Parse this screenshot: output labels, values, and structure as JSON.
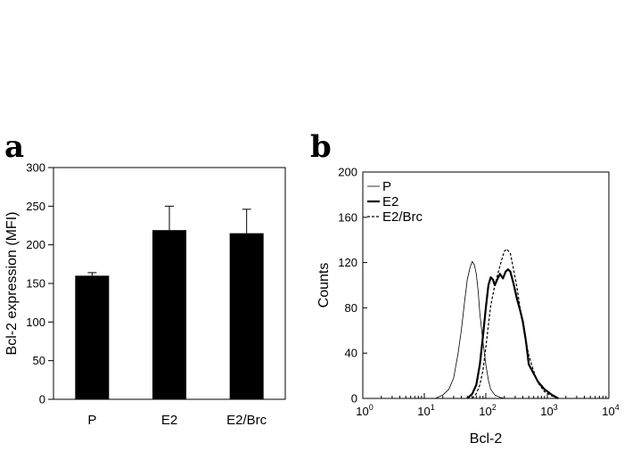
{
  "panels": [
    {
      "letter": "a"
    },
    {
      "letter": "b"
    }
  ],
  "chart_data": [
    {
      "type": "bar",
      "ylabel": "Bcl-2 expression (MFI)",
      "xlabel": "",
      "categories": [
        "P",
        "E2",
        "E2/Brc"
      ],
      "values": [
        160,
        219,
        215
      ],
      "error_plus": [
        4,
        31,
        31
      ],
      "ylim": [
        0,
        300
      ],
      "yticks": [
        0,
        50,
        100,
        150,
        200,
        250,
        300
      ],
      "bar_color": "#000000",
      "grid": false
    },
    {
      "type": "line",
      "xlabel": "Bcl-2",
      "ylabel": "Counts",
      "x_scale": "log",
      "xlim": [
        1,
        10000
      ],
      "xtick_labels": [
        {
          "base": "10",
          "exp": "0"
        },
        {
          "base": "10",
          "exp": "1"
        },
        {
          "base": "10",
          "exp": "2"
        },
        {
          "base": "10",
          "exp": "3"
        },
        {
          "base": "10",
          "exp": "4"
        }
      ],
      "ylim": [
        0,
        200
      ],
      "yticks": [
        0,
        40,
        80,
        120,
        160,
        200
      ],
      "legend": {
        "placement": "top-left"
      },
      "grid": false,
      "series": [
        {
          "name": "P",
          "style": "thin",
          "x": [
            15,
            20,
            25,
            30,
            35,
            40,
            45,
            50,
            55,
            60,
            65,
            70,
            75,
            80,
            90,
            100,
            110,
            120,
            140,
            170,
            200
          ],
          "y": [
            0,
            3,
            8,
            18,
            38,
            60,
            85,
            105,
            115,
            121,
            118,
            110,
            95,
            75,
            50,
            30,
            16,
            8,
            3,
            1,
            0
          ]
        },
        {
          "name": "E2",
          "style": "thick",
          "x": [
            50,
            60,
            70,
            80,
            90,
            100,
            110,
            120,
            130,
            140,
            150,
            170,
            190,
            210,
            230,
            250,
            280,
            320,
            360,
            400,
            450,
            500,
            600,
            700,
            900,
            1200,
            1500
          ],
          "y": [
            0,
            4,
            12,
            30,
            55,
            80,
            100,
            107,
            105,
            100,
            104,
            110,
            106,
            112,
            114,
            112,
            102,
            88,
            78,
            68,
            50,
            30,
            22,
            15,
            8,
            3,
            0
          ]
        },
        {
          "name": "E2/Brc",
          "style": "dotted",
          "x": [
            60,
            70,
            80,
            90,
            100,
            110,
            120,
            140,
            160,
            180,
            200,
            220,
            250,
            280,
            320,
            360,
            400,
            450,
            500,
            600,
            700,
            900,
            1200,
            1500
          ],
          "y": [
            0,
            4,
            12,
            25,
            45,
            65,
            82,
            100,
            112,
            122,
            130,
            132,
            128,
            115,
            98,
            80,
            65,
            50,
            38,
            24,
            14,
            6,
            2,
            0
          ]
        }
      ]
    }
  ]
}
